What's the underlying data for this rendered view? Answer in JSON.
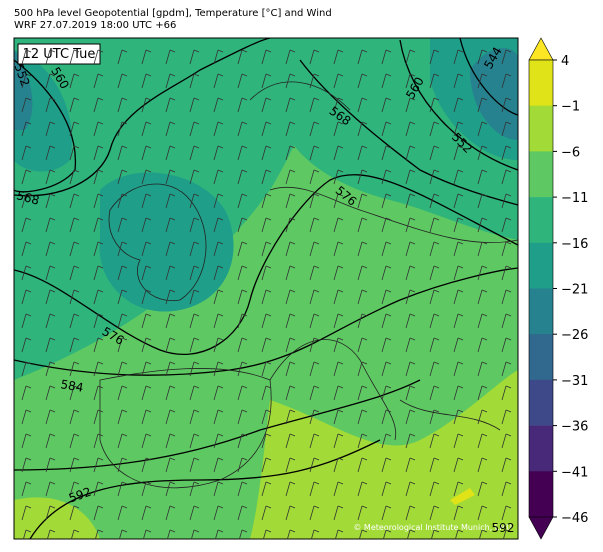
{
  "header": {
    "title": "500 hPa level Geopotential [gpdm], Temperature [°C] and Wind",
    "subtitle": "WRF 27.07.2019 18:00 UTC +66"
  },
  "map": {
    "time_badge": "12 UTC Tue",
    "contour_labels": [
      "552",
      "560",
      "568",
      "576",
      "584",
      "592",
      "560",
      "544",
      "552",
      "568",
      "576",
      "592"
    ],
    "copyright": "© Meteorological Institute Munich, LMU"
  },
  "colorbar": {
    "ticks": [
      "4",
      "−1",
      "−6",
      "−11",
      "−16",
      "−21",
      "−26",
      "−31",
      "−36",
      "−41",
      "−46"
    ],
    "colors": [
      "#dfe318",
      "#a2da37",
      "#5ec962",
      "#2fb47c",
      "#1f9e89",
      "#26828e",
      "#31688e",
      "#3e4989",
      "#482878",
      "#440154"
    ],
    "over_color": "#fde725",
    "under_color": "#440154"
  }
}
